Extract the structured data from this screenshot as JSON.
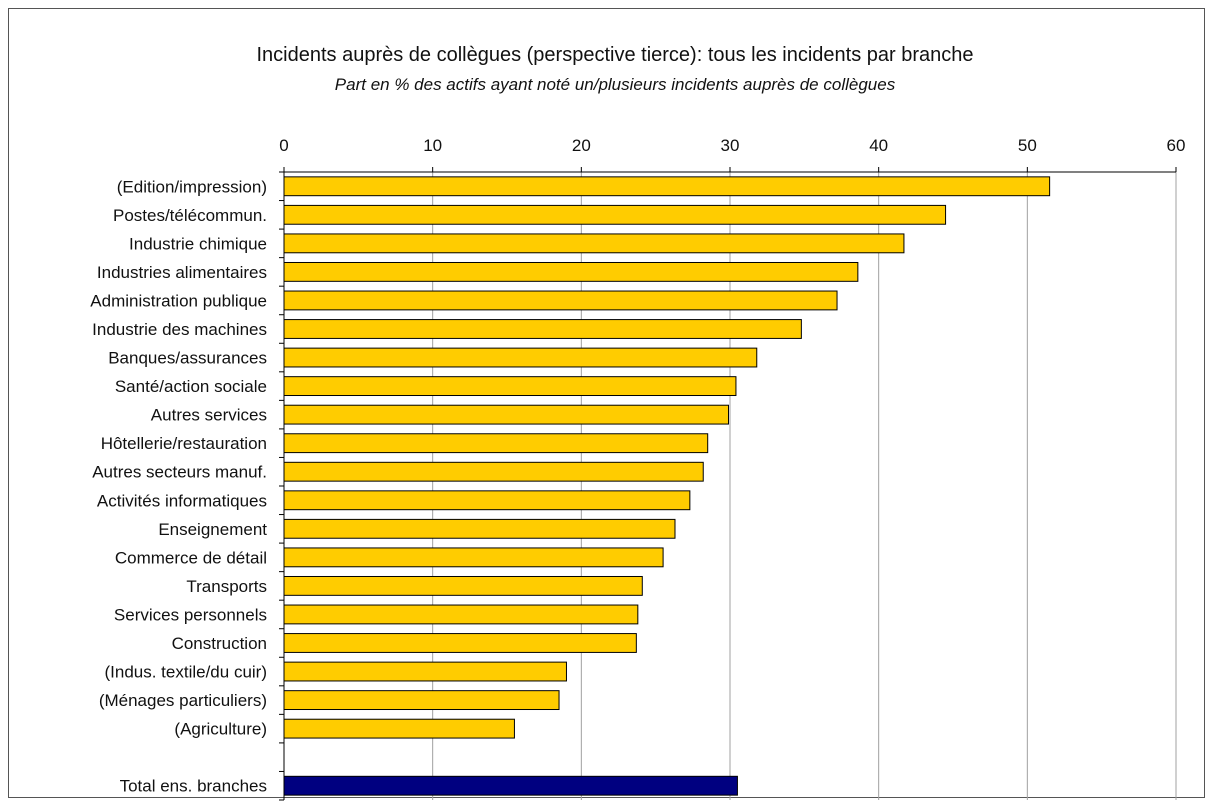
{
  "chart_data": {
    "type": "bar",
    "orientation": "horizontal",
    "title": "Incidents auprès de collègues  (perspective tierce): tous les incidents par branche",
    "subtitle": "Part en % des actifs ayant noté un/plusieurs incidents auprès de collègues",
    "xlim": [
      0,
      60
    ],
    "xticks": [
      0,
      10,
      20,
      30,
      40,
      50,
      60
    ],
    "grid": true,
    "axis_position": "top",
    "categories": [
      "(Edition/impression)",
      "Postes/télécommun.",
      "Industrie chimique",
      "Industries alimentaires",
      "Administration publique",
      "Industrie des machines",
      "Banques/assurances",
      "Santé/action sociale",
      "Autres services",
      "Hôtellerie/restauration",
      "Autres secteurs manuf.",
      "Activités informatiques",
      "Enseignement",
      "Commerce de détail",
      "Transports",
      "Services personnels",
      "Construction",
      "(Indus. textile/du cuir)",
      "(Ménages particuliers)",
      "(Agriculture)",
      "",
      "Total ens. branches"
    ],
    "values": [
      51.5,
      44.5,
      41.7,
      38.6,
      37.2,
      34.8,
      31.8,
      30.4,
      29.9,
      28.5,
      28.2,
      27.3,
      26.3,
      25.5,
      24.1,
      23.8,
      23.7,
      19.0,
      18.5,
      15.5,
      null,
      30.5
    ],
    "colors": {
      "default": "#FFCC00",
      "total": "#000080",
      "grid": "#a0a0a0",
      "axis": "#000000",
      "bar_border": "#000000"
    }
  }
}
